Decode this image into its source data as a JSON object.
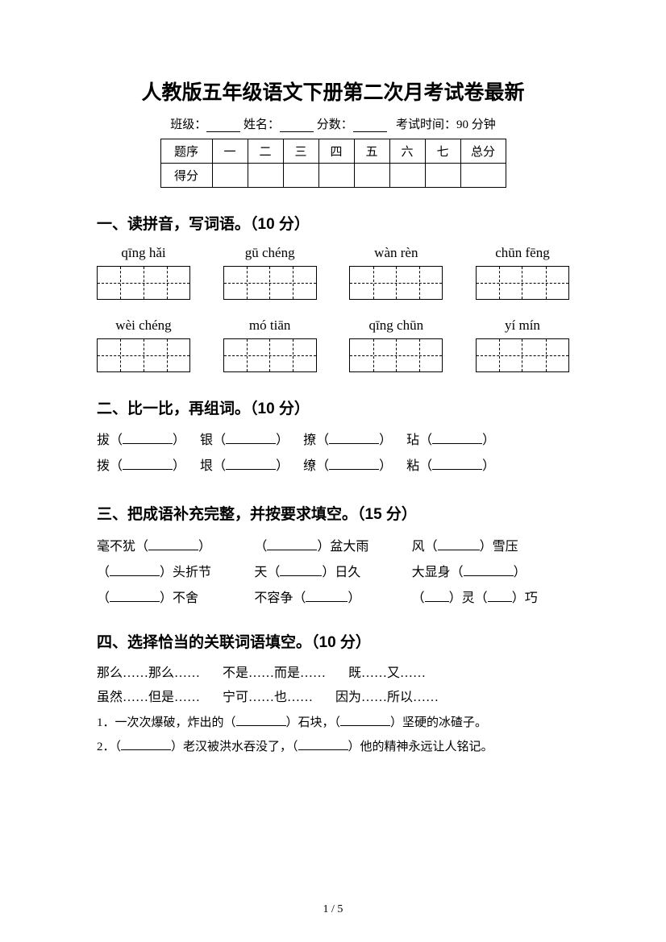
{
  "title": "人教版五年级语文下册第二次月考试卷最新",
  "meta": {
    "class_label": "班级：",
    "name_label": "姓名：",
    "score_label": "分数：",
    "time_label": "考试时间：90 分钟"
  },
  "score_table": {
    "row1": [
      "题序",
      "一",
      "二",
      "三",
      "四",
      "五",
      "六",
      "七",
      "总分"
    ],
    "row2_label": "得分"
  },
  "s1": {
    "heading": "一、读拼音，写词语。（10 分）",
    "row1": [
      "qīng hǎi",
      "gū chéng",
      "wàn rèn",
      "chūn fēng"
    ],
    "row2": [
      "wèi chéng",
      "mó tiān",
      "qīng chūn",
      "yí mín"
    ]
  },
  "s2": {
    "heading": "二、比一比，再组词。（10 分）",
    "row1": [
      "拔",
      "银",
      "撩",
      "玷"
    ],
    "row2": [
      "拨",
      "垠",
      "缭",
      "粘"
    ]
  },
  "s3": {
    "heading": "三、把成语补充完整，并按要求填空。（15 分）",
    "items": [
      {
        "pre": "毫不犹（",
        "mid": "",
        "post": "）",
        "blankw": "w60"
      },
      {
        "pre": "（",
        "mid": "）盆大雨",
        "post": "",
        "blankw": "w60"
      },
      {
        "pre": "风（",
        "mid": "）雪压",
        "post": "",
        "blankw": "w50"
      },
      {
        "pre": "（",
        "mid": "）头折节",
        "post": "",
        "blankw": "w60"
      },
      {
        "pre": "天（",
        "mid": "）日久",
        "post": "",
        "blankw": "w50"
      },
      {
        "pre": "大显身（",
        "mid": "",
        "post": "）",
        "blankw": "w60"
      },
      {
        "pre": "（",
        "mid": "）不舍",
        "post": "",
        "blankw": "w60"
      },
      {
        "pre": "不容争（",
        "mid": "",
        "post": "）",
        "blankw": "w50"
      },
      {
        "pre2": "（",
        "mid2a": "）灵（",
        "mid2b": "）巧",
        "blankw": "w30"
      }
    ]
  },
  "s4": {
    "heading": "四、选择恰当的关联词语填空。（10 分）",
    "row1": [
      "那么……那么……",
      "不是……而是……",
      "既……又……"
    ],
    "row2": [
      "虽然……但是……",
      "宁可……也……",
      "因为……所以……"
    ],
    "q1_a": "1．一次次爆破，炸出的（",
    "q1_b": "）石块，（",
    "q1_c": "）坚硬的冰碴子。",
    "q2_a": "2．（",
    "q2_b": "）老汉被洪水吞没了，（",
    "q2_c": "）他的精神永远让人铭记。"
  },
  "footer": "1 / 5"
}
